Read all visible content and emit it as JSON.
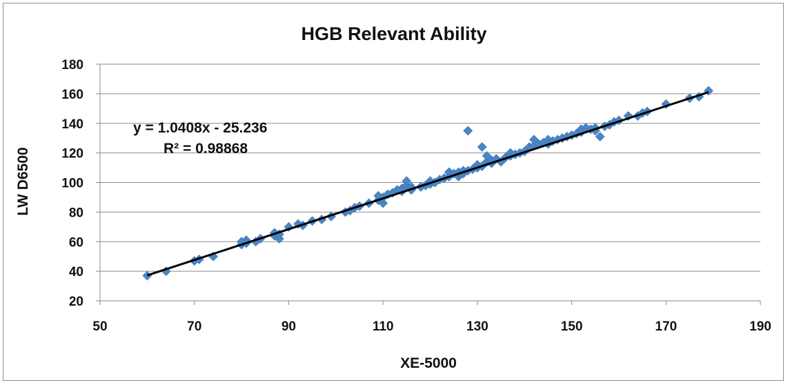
{
  "chart_data": {
    "type": "scatter",
    "title": "HGB Relevant Ability",
    "xlabel": "XE-5000",
    "ylabel": "LW D6500",
    "xlim": [
      50,
      190
    ],
    "ylim": [
      20,
      180
    ],
    "xticks": [
      "50",
      "70",
      "90",
      "110",
      "130",
      "150",
      "170",
      "190"
    ],
    "yticks": [
      "20",
      "40",
      "60",
      "80",
      "100",
      "120",
      "140",
      "160",
      "180"
    ],
    "grid": "horizontal",
    "legend": "none",
    "marker_color": "#4a86c5",
    "trendline_color": "#000000",
    "trendline": {
      "slope": 1.0408,
      "intercept": -25.236,
      "x_range": [
        60,
        179
      ]
    },
    "annotations": {
      "equation": "y = 1.0408x - 25.236",
      "r2": "R² = 0.98868"
    },
    "series": [
      {
        "points": [
          [
            60,
            37
          ],
          [
            64,
            40
          ],
          [
            70,
            47
          ],
          [
            71,
            48
          ],
          [
            74,
            50
          ],
          [
            80,
            58
          ],
          [
            80,
            60
          ],
          [
            81,
            61
          ],
          [
            81,
            59
          ],
          [
            83,
            60
          ],
          [
            84,
            62
          ],
          [
            87,
            64
          ],
          [
            87,
            66
          ],
          [
            88,
            62
          ],
          [
            88,
            65
          ],
          [
            90,
            70
          ],
          [
            92,
            72
          ],
          [
            93,
            71
          ],
          [
            95,
            74
          ],
          [
            97,
            75
          ],
          [
            99,
            77
          ],
          [
            102,
            80
          ],
          [
            103,
            81
          ],
          [
            104,
            83
          ],
          [
            105,
            84
          ],
          [
            107,
            86
          ],
          [
            109,
            88
          ],
          [
            109,
            91
          ],
          [
            110,
            86
          ],
          [
            110,
            90
          ],
          [
            111,
            92
          ],
          [
            112,
            93
          ],
          [
            113,
            95
          ],
          [
            114,
            96
          ],
          [
            114,
            94
          ],
          [
            115,
            98
          ],
          [
            115,
            101
          ],
          [
            116,
            97
          ],
          [
            116,
            95
          ],
          [
            118,
            97
          ],
          [
            119,
            98
          ],
          [
            120,
            99
          ],
          [
            120,
            101
          ],
          [
            121,
            100
          ],
          [
            122,
            102
          ],
          [
            123,
            103
          ],
          [
            124,
            104
          ],
          [
            124,
            107
          ],
          [
            125,
            106
          ],
          [
            126,
            104
          ],
          [
            126,
            107
          ],
          [
            127,
            106
          ],
          [
            127,
            108
          ],
          [
            128,
            108
          ],
          [
            128,
            135
          ],
          [
            129,
            109
          ],
          [
            130,
            110
          ],
          [
            130,
            112
          ],
          [
            131,
            124
          ],
          [
            131,
            111
          ],
          [
            132,
            114
          ],
          [
            132,
            118
          ],
          [
            133,
            113
          ],
          [
            133,
            115
          ],
          [
            134,
            116
          ],
          [
            135,
            114
          ],
          [
            136,
            117
          ],
          [
            137,
            118
          ],
          [
            137,
            120
          ],
          [
            138,
            119
          ],
          [
            139,
            120
          ],
          [
            140,
            121
          ],
          [
            141,
            124
          ],
          [
            142,
            125
          ],
          [
            142,
            129
          ],
          [
            143,
            126
          ],
          [
            144,
            127
          ],
          [
            145,
            126
          ],
          [
            145,
            129
          ],
          [
            146,
            128
          ],
          [
            147,
            129
          ],
          [
            148,
            130
          ],
          [
            149,
            131
          ],
          [
            150,
            132
          ],
          [
            151,
            133
          ],
          [
            152,
            134
          ],
          [
            152,
            136
          ],
          [
            153,
            137
          ],
          [
            154,
            136
          ],
          [
            155,
            137
          ],
          [
            155,
            135
          ],
          [
            156,
            131
          ],
          [
            157,
            138
          ],
          [
            158,
            139
          ],
          [
            159,
            141
          ],
          [
            160,
            142
          ],
          [
            162,
            145
          ],
          [
            164,
            145
          ],
          [
            165,
            147
          ],
          [
            166,
            148
          ],
          [
            170,
            153
          ],
          [
            175,
            157
          ],
          [
            177,
            158
          ],
          [
            179,
            162
          ]
        ]
      }
    ]
  }
}
